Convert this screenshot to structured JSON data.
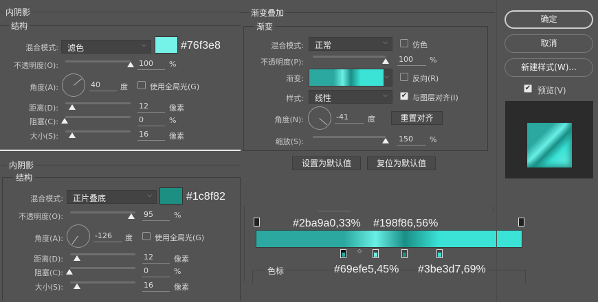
{
  "colors": {
    "bg": "#535353",
    "highlight": "#76f3e8",
    "shadow": "#1c8f82"
  },
  "inner_shadow_1": {
    "title": "内阴影",
    "section": "结构",
    "blend_label": "混合模式:",
    "blend_value": "滤色",
    "color_hex": "#76f3e8",
    "opacity_label": "不透明度(O):",
    "opacity": "100",
    "opacity_unit": "%",
    "angle_label": "角度(A):",
    "angle": "40",
    "angle_unit": "度",
    "global_light_label": "使用全局光(G)",
    "global_light": false,
    "distance_label": "距离(D):",
    "distance": "12",
    "distance_unit": "像素",
    "choke_label": "阻塞(C):",
    "choke": "0",
    "choke_unit": "%",
    "size_label": "大小(S):",
    "size": "16",
    "size_unit": "像素"
  },
  "inner_shadow_2": {
    "title": "内阴影",
    "section": "结构",
    "blend_label": "混合模式:",
    "blend_value": "正片叠底",
    "color_hex": "#1c8f82",
    "opacity_label": "不透明度(O):",
    "opacity": "95",
    "opacity_unit": "%",
    "angle_label": "角度(A):",
    "angle": "-126",
    "angle_unit": "度",
    "global_light_label": "使用全局光(G)",
    "global_light": false,
    "distance_label": "距离(D):",
    "distance": "12",
    "distance_unit": "像素",
    "choke_label": "阻塞(C):",
    "choke": "0",
    "choke_unit": "%",
    "size_label": "大小(S):",
    "size": "16",
    "size_unit": "像素"
  },
  "gradient_overlay": {
    "title": "渐变叠加",
    "section": "渐变",
    "blend_label": "混合模式:",
    "blend_value": "正常",
    "dither_label": "仿色",
    "dither": false,
    "opacity_label": "不透明度(P):",
    "opacity": "100",
    "opacity_unit": "%",
    "gradient_label": "渐变:",
    "reverse_label": "反向(R)",
    "reverse": false,
    "style_label": "样式:",
    "style_value": "线性",
    "align_label": "与图层对齐(I)",
    "align": true,
    "angle_label": "角度(N):",
    "angle": "-41",
    "angle_unit": "度",
    "reset_align": "重置对齐",
    "scale_label": "缩放(S):",
    "scale": "150",
    "scale_unit": "%",
    "set_default": "设置为默认值",
    "reset_default": "复位为默认值"
  },
  "gradient_editor": {
    "stops_label": "色标",
    "stops": [
      {
        "color": "#2ba9a0",
        "location": 33,
        "label": "#2ba9a0,33%"
      },
      {
        "color": "#69efe5",
        "location": 45,
        "label": "#69efe5,45%"
      },
      {
        "color": "#198f86",
        "location": 56,
        "label": "#198f86,56%"
      },
      {
        "color": "#3be3d7",
        "location": 69,
        "label": "#3be3d7,69%"
      }
    ]
  },
  "actions": {
    "ok": "确定",
    "cancel": "取消",
    "new_style": "新建样式(W)...",
    "preview_label": "预览(V)",
    "preview": true
  }
}
